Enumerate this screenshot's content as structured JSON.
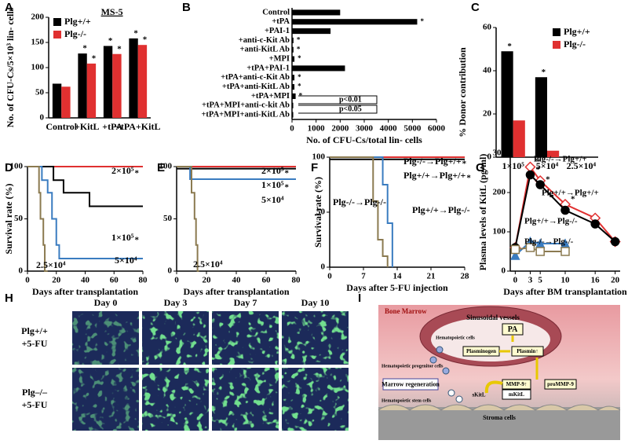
{
  "chart_data": [
    {
      "type": "bar",
      "panel": "A",
      "annotation": "MS-5",
      "ylabel": "No. of CFU-Cs/5×10³ lin- cells",
      "categories": [
        "Control",
        "+KitL",
        "+tPA",
        "+tPA+KitL"
      ],
      "series": [
        {
          "name": "Plg+/+",
          "color": "#000000",
          "values": [
            68,
            128,
            143,
            158
          ],
          "significance": [
            null,
            "*",
            "*",
            "*"
          ]
        },
        {
          "name": "Plg-/-",
          "color": "#e03030",
          "values": [
            62,
            108,
            127,
            145
          ],
          "significance": [
            null,
            "*",
            "*",
            "*"
          ]
        }
      ],
      "ylim": [
        0,
        200
      ],
      "yticks": [
        0,
        50,
        100,
        150,
        200
      ],
      "legend": "upper left"
    },
    {
      "type": "barh",
      "panel": "B",
      "xlabel": "No. of CFU-Cs/total lin- cells",
      "categories": [
        "Control",
        "+tPA",
        "+PAI-1",
        "+anti-c-Kit Ab",
        "+anti-KitL Ab",
        "+MPI",
        "+tPA+PAI-1",
        "+tPA+anti-c-Kit Ab",
        "+tPA+anti-KitL Ab",
        "+tPA+MPI",
        "+tPA+MPI+anti-c-kit Ab",
        "+tPA+MPI+anti-KitL Ab"
      ],
      "values": [
        2000,
        5200,
        1600,
        60,
        60,
        100,
        2200,
        100,
        100,
        150,
        50,
        50
      ],
      "significance": [
        null,
        "*",
        null,
        "*",
        "*",
        "*",
        null,
        "*",
        "*",
        "*",
        null,
        null
      ],
      "color": "#000000",
      "xlim": [
        0,
        6000
      ],
      "xticks": [
        0,
        1000,
        2000,
        3000,
        4000,
        5000,
        6000
      ],
      "annotations": [
        "p<0.01",
        "p<0.05"
      ]
    },
    {
      "type": "bar",
      "panel": "C",
      "ylabel": "% Donor contribution",
      "categories": [
        "1×10⁵",
        "5×10⁴",
        "2.5×10⁴"
      ],
      "series": [
        {
          "name": "Plg+/+",
          "color": "#000000",
          "values": [
            49,
            37,
            0
          ],
          "significance": [
            "*",
            "*",
            null
          ]
        },
        {
          "name": "Plg-/-",
          "color": "#e03030",
          "values": [
            17,
            3,
            0
          ]
        }
      ],
      "ylim": [
        0,
        60
      ],
      "yticks": [
        0,
        20,
        40,
        60
      ],
      "legend": "upper right"
    },
    {
      "type": "step",
      "panel": "D",
      "ylabel": "Survival rate (%)",
      "xlabel": "Days after transplantation",
      "series": [
        {
          "name": "2×10⁵",
          "color": "#e03030",
          "significance": "*",
          "x": [
            0,
            80
          ],
          "values": [
            100,
            100
          ]
        },
        {
          "name": "1×10⁵",
          "color": "#000000",
          "significance": "*",
          "x": [
            0,
            18,
            18,
            25,
            25,
            43,
            43,
            80
          ],
          "values": [
            100,
            100,
            87,
            87,
            75,
            75,
            62,
            62
          ]
        },
        {
          "name": "5×10⁴",
          "color": "#3a7cc0",
          "x": [
            0,
            10,
            10,
            14,
            14,
            17,
            17,
            20,
            20,
            22,
            22,
            80
          ],
          "values": [
            100,
            100,
            87,
            87,
            75,
            75,
            50,
            50,
            25,
            25,
            12,
            12
          ]
        },
        {
          "name": "2.5×10⁴",
          "color": "#8b7a50",
          "x": [
            0,
            8,
            8,
            9,
            9,
            11,
            11,
            12,
            12,
            14
          ],
          "values": [
            100,
            100,
            75,
            75,
            50,
            50,
            25,
            25,
            0,
            0
          ]
        }
      ],
      "xlim": [
        0,
        80
      ],
      "xticks": [
        0,
        20,
        40,
        60,
        80
      ],
      "ylim": [
        0,
        100
      ],
      "yticks": [
        0,
        50,
        100
      ]
    },
    {
      "type": "step",
      "panel": "E",
      "xlabel": "Days after transplantation",
      "series": [
        {
          "name": "2×10⁵",
          "color": "#e03030",
          "significance": "*",
          "x": [
            0,
            80
          ],
          "values": [
            100,
            100
          ]
        },
        {
          "name": "1×10⁵",
          "color": "#000000",
          "significance": "*",
          "x": [
            0,
            80
          ],
          "values": [
            98,
            98
          ]
        },
        {
          "name": "5×10⁴",
          "color": "#3a7cc0",
          "x": [
            0,
            9,
            9,
            80
          ],
          "values": [
            100,
            100,
            88,
            88
          ]
        },
        {
          "name": "2.5×10⁴",
          "color": "#8b7a50",
          "x": [
            0,
            10,
            10,
            12,
            12,
            13,
            13,
            14,
            14,
            15
          ],
          "values": [
            100,
            100,
            75,
            75,
            50,
            50,
            25,
            25,
            0,
            0
          ]
        }
      ],
      "xlim": [
        0,
        80
      ],
      "xticks": [
        0,
        20,
        40,
        60,
        80
      ],
      "ylim": [
        0,
        100
      ],
      "yticks": [
        0,
        50,
        100
      ]
    },
    {
      "type": "step",
      "panel": "F",
      "ylabel": "Survival rate (%)",
      "xlabel": "Days after 5-FU injection",
      "series": [
        {
          "name": "Plg-/-→Plg+/+",
          "color": "#e03030",
          "significance": "*",
          "x": [
            0,
            28
          ],
          "values": [
            100,
            100
          ]
        },
        {
          "name": "Plg+/+→Plg+/+",
          "color": "#000000",
          "significance": "*",
          "x": [
            0,
            28
          ],
          "values": [
            98,
            98
          ]
        },
        {
          "name": "Plg+/+→Plg-/-",
          "color": "#3a7cc0",
          "x": [
            0,
            11,
            11,
            12,
            12,
            13,
            13
          ],
          "values": [
            100,
            100,
            75,
            75,
            40,
            40,
            0
          ]
        },
        {
          "name": "Plg-/-→Plg-/-",
          "color": "#8b7a50",
          "x": [
            0,
            9,
            9,
            10,
            10,
            11,
            11,
            12,
            12
          ],
          "values": [
            100,
            100,
            60,
            60,
            25,
            25,
            10,
            10,
            0
          ]
        }
      ],
      "xlim": [
        0,
        28
      ],
      "xticks": [
        0,
        7,
        14,
        21,
        28
      ],
      "ylim": [
        0,
        100
      ],
      "yticks": [
        0,
        50,
        100
      ]
    },
    {
      "type": "line",
      "panel": "G",
      "ylabel": "Plasma levels of KitL (pg/ml)",
      "xlabel": "Days after BM transplantation",
      "x": [
        0,
        3,
        5,
        10,
        16,
        20
      ],
      "series": [
        {
          "name": "Plg-/-→Plg+/+",
          "color": "#e03030",
          "marker": "diamond",
          "filled": false,
          "values": [
            60,
            265,
            230,
            170,
            135,
            75
          ],
          "significance": [
            null,
            "*",
            null,
            "*",
            null,
            null
          ]
        },
        {
          "name": "Plg+/+→Plg+/+",
          "color": "#000000",
          "marker": "circle",
          "filled": true,
          "values": [
            60,
            245,
            220,
            155,
            120,
            75
          ],
          "significance": [
            null,
            "*",
            "*",
            null,
            null,
            null
          ]
        },
        {
          "name": "Plg+/+→Plg-/-",
          "color": "#3a7cc0",
          "marker": "triangle",
          "filled": true,
          "values": [
            40,
            75,
            70,
            70,
            null,
            null
          ]
        },
        {
          "name": "Plg-/-→Plg-/-",
          "color": "#8b7a50",
          "marker": "square",
          "filled": false,
          "values": [
            55,
            60,
            50,
            50,
            null,
            null
          ]
        }
      ],
      "xlim": [
        -1,
        21
      ],
      "xticks": [
        0,
        3,
        5,
        10,
        16,
        20
      ],
      "ylim": [
        0,
        300
      ],
      "yticks": [
        0,
        100,
        200,
        300
      ]
    }
  ],
  "micrographs": {
    "panel": "H",
    "columns": [
      "Day 0",
      "Day 3",
      "Day 7",
      "Day 10"
    ],
    "rows": [
      [
        "Plg+/+",
        "+5-FU"
      ],
      [
        "Plg–/–",
        "+5-FU"
      ]
    ]
  },
  "diagram": {
    "panel": "I",
    "labels": {
      "bone_marrow": "Bone Marrow",
      "sinusoidal_vessels": "Sinusoidal vessels",
      "pa": "PA",
      "hematopoietic_cells": "Hematopoietic cells",
      "plasminogen": "Plasminogen",
      "plasmin": "Plasmin↑",
      "progenitor_cells": "Hematopoietic progenitor cells",
      "prommp9": "proMMP-9",
      "mmp9": "MMP-9↑",
      "marrow_regeneration": "Marrow regeneration",
      "skitl": "sKitL",
      "mkitl": "mKitL",
      "stem_cells": "Hematopoietic stem cells",
      "stroma_cells": "Stroma cells"
    }
  }
}
